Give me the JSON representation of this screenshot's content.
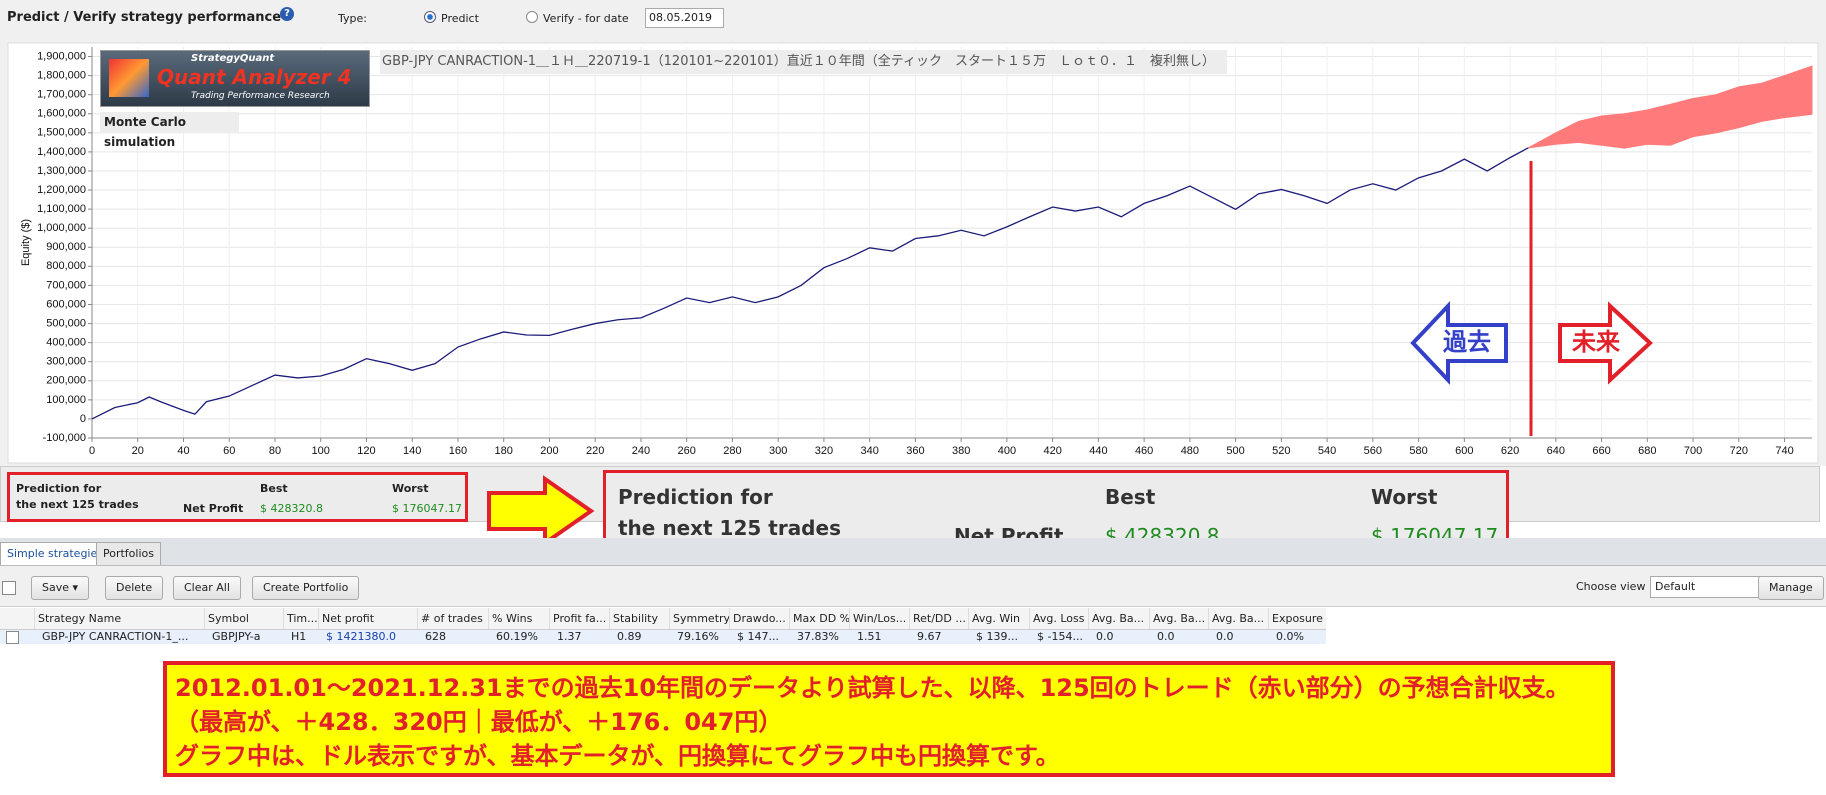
{
  "toolbar": {
    "title": "Predict / Verify strategy performance",
    "help": "?",
    "type_label": "Type:",
    "predict": "Predict",
    "verify": "Verify - for date",
    "date": "08.05.2019"
  },
  "chart_data": {
    "type": "line",
    "title": "GBP-JPY CANRACTION-1＿１Ｈ＿220719-1（120101~220101）直近１０年間（全ティック　スタート１５万　Ｌｏｔ０．１　複利無し）",
    "logo": {
      "brand": "StrategyQuant",
      "product": "Quant Analyzer 4",
      "tagline": "Trading Performance Research"
    },
    "subtitle": "Monte Carlo simulation",
    "y_label": "Equity ($)",
    "xlim": [
      0,
      752
    ],
    "ylim": [
      -100000,
      1950000
    ],
    "xticks": [
      0,
      20,
      40,
      60,
      80,
      100,
      120,
      140,
      160,
      180,
      200,
      220,
      240,
      260,
      280,
      300,
      320,
      340,
      360,
      380,
      400,
      420,
      440,
      460,
      480,
      500,
      520,
      540,
      560,
      580,
      600,
      620,
      640,
      660,
      680,
      700,
      720,
      740
    ],
    "yticks": [
      {
        "value": -100000,
        "label": "-100,000"
      },
      0,
      {
        "value": 100000,
        "label": "100,000"
      },
      {
        "value": 200000,
        "label": "200,000"
      },
      {
        "value": 300000,
        "label": "300,000"
      },
      {
        "value": 400000,
        "label": "400,000"
      },
      {
        "value": 500000,
        "label": "500,000"
      },
      {
        "value": 600000,
        "label": "600,000"
      },
      {
        "value": 700000,
        "label": "700,000"
      },
      {
        "value": 800000,
        "label": "800,000"
      },
      {
        "value": 900000,
        "label": "900,000"
      },
      {
        "value": 1000000,
        "label": "1,000,000"
      },
      {
        "value": 1100000,
        "label": "1,100,000"
      },
      {
        "value": 1200000,
        "label": "1,200,000"
      },
      {
        "value": 1300000,
        "label": "1,300,000"
      },
      {
        "value": 1400000,
        "label": "1,400,000"
      },
      {
        "value": 1500000,
        "label": "1,500,000"
      },
      {
        "value": 1600000,
        "label": "1,600,000"
      },
      {
        "value": 1700000,
        "label": "1,700,000"
      },
      {
        "value": 1800000,
        "label": "1,800,000"
      },
      {
        "value": 1900000,
        "label": "1,900,000"
      }
    ],
    "grid": true,
    "series": [
      {
        "color": "#1c1c7a",
        "x": [
          0,
          10,
          20,
          25,
          30,
          40,
          45,
          50,
          60,
          70,
          80,
          90,
          100,
          110,
          120,
          130,
          140,
          150,
          160,
          170,
          180,
          190,
          200,
          210,
          220,
          230,
          240,
          250,
          260,
          270,
          280,
          290,
          300,
          310,
          320,
          330,
          340,
          350,
          360,
          370,
          380,
          390,
          400,
          410,
          420,
          430,
          440,
          450,
          460,
          470,
          480,
          490,
          500,
          510,
          520,
          530,
          540,
          550,
          560,
          570,
          580,
          590,
          600,
          610,
          620,
          628
        ],
        "values": [
          0,
          60000,
          85000,
          115000,
          90000,
          45000,
          25000,
          90000,
          120000,
          175000,
          230000,
          215000,
          225000,
          260000,
          316000,
          290000,
          255000,
          290000,
          377000,
          420000,
          456000,
          440000,
          438000,
          470000,
          500000,
          520000,
          530000,
          580000,
          634000,
          610000,
          640000,
          610000,
          640000,
          700000,
          793000,
          840000,
          897000,
          880000,
          946000,
          960000,
          989000,
          960000,
          1007000,
          1060000,
          1111000,
          1090000,
          1111000,
          1060000,
          1130000,
          1170000,
          1221000,
          1160000,
          1099000,
          1180000,
          1203000,
          1170000,
          1130000,
          1200000,
          1233000,
          1200000,
          1264000,
          1300000,
          1362000,
          1300000,
          1370000,
          1421380
        ]
      }
    ],
    "band": {
      "color": "#ff7b7b",
      "x": [
        628,
        640,
        650,
        660,
        670,
        680,
        690,
        700,
        710,
        720,
        730,
        740,
        752
      ],
      "upper": [
        1421380,
        1500000,
        1560000,
        1588000,
        1600000,
        1620000,
        1649000,
        1680000,
        1700000,
        1741000,
        1760000,
        1800000,
        1849700
      ],
      "lower": [
        1421380,
        1440000,
        1450000,
        1435000,
        1420000,
        1440000,
        1435000,
        1480000,
        1500000,
        1527000,
        1560000,
        1580000,
        1597427
      ]
    }
  },
  "annotations": {
    "past": "過去",
    "future": "未来"
  },
  "prediction": {
    "heading_1": "Prediction for",
    "heading_2": "the next 125 trades",
    "metric": "Net Profit",
    "best_label": "Best",
    "worst_label": "Worst",
    "best": "$ 428320.8",
    "worst": "$ 176047.17"
  },
  "tabs": [
    "Simple strategies",
    "Portfolios"
  ],
  "buttons": {
    "save": "Save",
    "delete": "Delete",
    "clear_all": "Clear All",
    "create_portfolio": "Create Portfolio",
    "choose_view": "Choose view",
    "view": "Default",
    "manage": "Manage"
  },
  "table": {
    "columns": [
      "Strategy Name",
      "Symbol",
      "Tim...",
      "Net profit",
      "# of trades",
      "% Wins",
      "Profit fa...",
      "Stability",
      "Symmetry",
      "Drawdo...",
      "Max DD %",
      "Win/Los...",
      "Ret/DD ...",
      "Avg. Win",
      "Avg. Loss",
      "Avg. Ba...",
      "Avg. Ba...",
      "Avg. Ba...",
      "Exposure"
    ],
    "rows": [
      [
        "GBP-JPY CANRACTION-1_...",
        "GBPJPY-a",
        "H1",
        "$ 1421380.0",
        "628",
        "60.19%",
        "1.37",
        "0.89",
        "79.16%",
        "$ 147...",
        "37.83%",
        "1.51",
        "9.67",
        "$ 139...",
        "$ -154...",
        "0.0",
        "0.0",
        "0.0",
        "0.0%"
      ]
    ]
  },
  "note": {
    "lines": [
      "2012.01.01～2021.12.31までの過去10年間のデータより試算した、以降、125回のトレード（赤い部分）の予想合計収支。",
      "（最高が、＋428．320円｜最低が、＋176．047円）",
      "グラフ中は、ドル表示ですが、基本データが、円換算にてグラフ中も円換算です。"
    ]
  }
}
